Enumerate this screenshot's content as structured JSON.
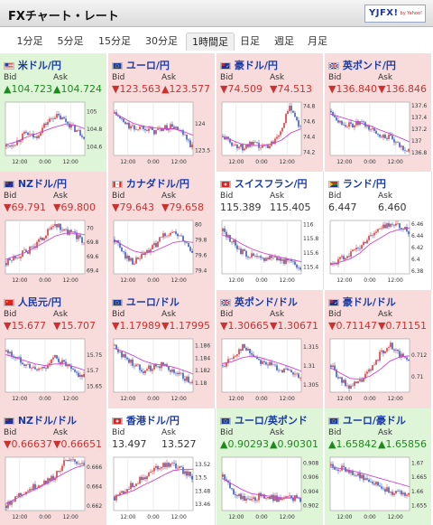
{
  "header": {
    "title": "FXチャート・レート",
    "logo": "YJFX!",
    "logo_sub": "by Yahoo!"
  },
  "tabs": [
    {
      "label": "1分足",
      "active": false
    },
    {
      "label": "5分足",
      "active": false
    },
    {
      "label": "15分足",
      "active": false
    },
    {
      "label": "30分足",
      "active": false
    },
    {
      "label": "1時間足",
      "active": true
    },
    {
      "label": "日足",
      "active": false
    },
    {
      "label": "週足",
      "active": false
    },
    {
      "label": "月足",
      "active": false
    }
  ],
  "labels": {
    "bid": "Bid",
    "ask": "Ask"
  },
  "colors": {
    "up_bg": "#dff5d8",
    "down_bg": "#f8dcdc",
    "up_text": "#1e8a1e",
    "down_text": "#cc3030",
    "candle_up": "#cc2222",
    "candle_down": "#2244aa",
    "ma_line": "#cc44cc"
  },
  "pairs": [
    {
      "name": "米ドル/円",
      "flag": "us",
      "dir": "up",
      "bid": "▲104.723",
      "ask": "▲104.724",
      "chart_data": {
        "type": "line",
        "xticks": [
          "12:00",
          "0:00",
          "12:00"
        ],
        "yticks": [
          "105",
          "104.8",
          "104.6"
        ],
        "ylim": [
          104.5,
          105.1
        ],
        "trend": [
          104.6,
          104.65,
          104.75,
          104.7,
          104.85,
          104.95,
          104.9,
          104.8,
          104.72
        ],
        "ma": [
          104.62,
          104.65,
          104.7,
          104.74,
          104.78,
          104.82,
          104.85,
          104.84,
          104.8
        ]
      }
    },
    {
      "name": "ユーロ/円",
      "flag": "eu",
      "dir": "down",
      "bid": "▼123.563",
      "ask": "▲123.577",
      "chart_data": {
        "type": "line",
        "xticks": [
          "12:00",
          "0:00",
          "12:00"
        ],
        "yticks": [
          "124",
          "123.5"
        ],
        "ylim": [
          123.4,
          124.4
        ],
        "trend": [
          124.2,
          124.0,
          123.9,
          123.95,
          123.85,
          123.9,
          123.95,
          123.8,
          123.55
        ],
        "ma": [
          124.2,
          124.1,
          124.0,
          123.95,
          123.92,
          123.9,
          123.9,
          123.85,
          123.78
        ]
      }
    },
    {
      "name": "豪ドル/円",
      "flag": "au",
      "dir": "down",
      "bid": "▼74.509",
      "ask": "▼74.513",
      "chart_data": {
        "type": "line",
        "xticks": [
          "12:00",
          "0:00",
          "12:00"
        ],
        "yticks": [
          "74.8",
          "74.6",
          "74.4",
          "74.2"
        ],
        "ylim": [
          74.15,
          74.85
        ],
        "trend": [
          74.4,
          74.3,
          74.25,
          74.3,
          74.25,
          74.3,
          74.5,
          74.8,
          74.5
        ],
        "ma": [
          74.4,
          74.35,
          74.3,
          74.28,
          74.28,
          74.3,
          74.35,
          74.45,
          74.5
        ]
      }
    },
    {
      "name": "英ポンド/円",
      "flag": "uk",
      "dir": "down",
      "bid": "▼136.840",
      "ask": "▼136.846",
      "chart_data": {
        "type": "line",
        "xticks": [
          "12:00",
          "0:00",
          "12:00"
        ],
        "yticks": [
          "137.6",
          "137.4",
          "137.2",
          "137",
          "136.8"
        ],
        "ylim": [
          136.75,
          137.65
        ],
        "trend": [
          137.5,
          137.3,
          137.25,
          137.3,
          137.2,
          137.1,
          137.05,
          136.9,
          136.84
        ],
        "ma": [
          137.45,
          137.4,
          137.35,
          137.3,
          137.25,
          137.18,
          137.12,
          137.05,
          136.98
        ]
      }
    },
    {
      "name": "NZドル/円",
      "flag": "nz",
      "dir": "down",
      "bid": "▼69.791",
      "ask": "▼69.800",
      "chart_data": {
        "type": "line",
        "xticks": [
          "12:00",
          "0:00",
          "12:00"
        ],
        "yticks": [
          "70",
          "69.8",
          "69.6",
          "69.4"
        ],
        "ylim": [
          69.35,
          70.1
        ],
        "trend": [
          69.5,
          69.6,
          69.65,
          69.75,
          69.9,
          70.05,
          69.95,
          69.9,
          69.79
        ],
        "ma": [
          69.55,
          69.6,
          69.65,
          69.72,
          69.8,
          69.88,
          69.92,
          69.92,
          69.9
        ]
      }
    },
    {
      "name": "カナダドル/円",
      "flag": "ca",
      "dir": "down",
      "bid": "▼79.643",
      "ask": "▼79.658",
      "chart_data": {
        "type": "line",
        "xticks": [
          "12:00",
          "0:00",
          "12:00"
        ],
        "yticks": [
          "80",
          "79.8",
          "79.6",
          "79.4"
        ],
        "ylim": [
          79.35,
          80.05
        ],
        "trend": [
          79.8,
          79.6,
          79.5,
          79.6,
          79.7,
          79.85,
          79.9,
          79.8,
          79.64
        ],
        "ma": [
          79.8,
          79.72,
          79.65,
          79.62,
          79.64,
          79.7,
          79.76,
          79.78,
          79.76
        ]
      }
    },
    {
      "name": "スイスフラン/円",
      "flag": "ch",
      "dir": "none",
      "bid": "115.389",
      "ask": "115.405",
      "chart_data": {
        "type": "line",
        "xticks": [
          "12:00",
          "0:00",
          "12:00"
        ],
        "yticks": [
          "116",
          "115.8",
          "115.6",
          "115.4"
        ],
        "ylim": [
          115.3,
          116.05
        ],
        "trend": [
          115.9,
          115.75,
          115.6,
          115.55,
          115.5,
          115.55,
          115.5,
          115.45,
          115.39
        ],
        "ma": [
          115.85,
          115.8,
          115.72,
          115.65,
          115.6,
          115.56,
          115.53,
          115.5,
          115.47
        ]
      }
    },
    {
      "name": "ランド/円",
      "flag": "za",
      "dir": "none",
      "bid": "6.447",
      "ask": "6.460",
      "chart_data": {
        "type": "line",
        "xticks": [
          "12:00",
          "0:00",
          "12:00"
        ],
        "yticks": [
          "6.46",
          "6.44",
          "6.42",
          "6.4",
          "6.38"
        ],
        "ylim": [
          6.375,
          6.465
        ],
        "trend": [
          6.39,
          6.4,
          6.41,
          6.42,
          6.44,
          6.45,
          6.46,
          6.455,
          6.447
        ],
        "ma": [
          6.39,
          6.395,
          6.4,
          6.41,
          6.425,
          6.435,
          6.445,
          6.45,
          6.452
        ]
      }
    },
    {
      "name": "人民元/円",
      "flag": "cn",
      "dir": "down",
      "bid": "▼15.677",
      "ask": "▼15.707",
      "chart_data": {
        "type": "line",
        "xticks": [
          "12:00",
          "0:00",
          "12:00"
        ],
        "yticks": [
          "15.75",
          "15.7",
          "15.65"
        ],
        "ylim": [
          15.63,
          15.8
        ],
        "trend": [
          15.76,
          15.74,
          15.72,
          15.7,
          15.71,
          15.74,
          15.72,
          15.69,
          15.68
        ],
        "ma": [
          15.75,
          15.74,
          15.73,
          15.72,
          15.715,
          15.72,
          15.72,
          15.71,
          15.7
        ]
      }
    },
    {
      "name": "ユーロ/ドル",
      "flag": "eu",
      "dir": "down",
      "bid": "▼1.17989",
      "ask": "▼1.17995",
      "chart_data": {
        "type": "line",
        "xticks": [
          "12:00",
          "0:00",
          "12:00"
        ],
        "yticks": [
          "1.186",
          "1.184",
          "1.182",
          "1.18"
        ],
        "ylim": [
          1.1785,
          1.187
        ],
        "trend": [
          1.186,
          1.184,
          1.183,
          1.182,
          1.1825,
          1.183,
          1.182,
          1.181,
          1.1799
        ],
        "ma": [
          1.1855,
          1.185,
          1.1843,
          1.1835,
          1.183,
          1.1828,
          1.1825,
          1.182,
          1.1814
        ]
      }
    },
    {
      "name": "英ポンド/ドル",
      "flag": "uk",
      "dir": "down",
      "bid": "▼1.30665",
      "ask": "▼1.30671",
      "chart_data": {
        "type": "line",
        "xticks": [
          "12:00",
          "0:00",
          "12:00"
        ],
        "yticks": [
          "1.315",
          "1.31",
          "1.305"
        ],
        "ylim": [
          1.303,
          1.317
        ],
        "trend": [
          1.31,
          1.312,
          1.315,
          1.313,
          1.311,
          1.31,
          1.309,
          1.308,
          1.3066
        ],
        "ma": [
          1.3105,
          1.311,
          1.312,
          1.3125,
          1.312,
          1.3112,
          1.3104,
          1.3095,
          1.3085
        ]
      }
    },
    {
      "name": "豪ドル/ドル",
      "flag": "au",
      "dir": "down",
      "bid": "▼0.71147",
      "ask": "▼0.71151",
      "chart_data": {
        "type": "line",
        "xticks": [
          "12:00",
          "0:00",
          "12:00"
        ],
        "yticks": [
          "0.712",
          "0.71"
        ],
        "ylim": [
          0.7085,
          0.7135
        ],
        "trend": [
          0.711,
          0.7095,
          0.709,
          0.7095,
          0.7105,
          0.712,
          0.713,
          0.712,
          0.7115
        ],
        "ma": [
          0.7108,
          0.7103,
          0.7098,
          0.7097,
          0.71,
          0.7106,
          0.7114,
          0.7118,
          0.7119
        ]
      }
    },
    {
      "name": "NZドル/ドル",
      "flag": "nz",
      "dir": "down",
      "bid": "▼0.66637",
      "ask": "▼0.66651",
      "chart_data": {
        "type": "line",
        "xticks": [
          "12:00",
          "0:00",
          "12:00"
        ],
        "yticks": [
          "0.666",
          "0.664",
          "0.662"
        ],
        "ylim": [
          0.6615,
          0.667
        ],
        "trend": [
          0.662,
          0.663,
          0.6635,
          0.664,
          0.6645,
          0.665,
          0.6665,
          0.6665,
          0.6664
        ],
        "ma": [
          0.6622,
          0.6627,
          0.6632,
          0.6637,
          0.6642,
          0.6648,
          0.6654,
          0.6659,
          0.6662
        ]
      }
    },
    {
      "name": "香港ドル/円",
      "flag": "hk",
      "dir": "none",
      "bid": "13.497",
      "ask": "13.527",
      "chart_data": {
        "type": "line",
        "xticks": [
          "12:00",
          "0:00",
          "12:00"
        ],
        "yticks": [
          "13.52",
          "13.5",
          "13.48",
          "13.46"
        ],
        "ylim": [
          13.45,
          13.53
        ],
        "trend": [
          13.47,
          13.48,
          13.49,
          13.5,
          13.51,
          13.52,
          13.52,
          13.51,
          13.5
        ],
        "ma": [
          13.47,
          13.475,
          13.48,
          13.488,
          13.495,
          13.503,
          13.51,
          13.512,
          13.512
        ]
      }
    },
    {
      "name": "ユーロ/英ポンド",
      "flag": "eu",
      "dir": "up",
      "bid": "▲0.90293",
      "ask": "▲0.90301",
      "chart_data": {
        "type": "line",
        "xticks": [
          "12:00",
          "0:00",
          "12:00"
        ],
        "yticks": [
          "0.908",
          "0.906",
          "0.904",
          "0.902"
        ],
        "ylim": [
          0.9012,
          0.9088
        ],
        "trend": [
          0.906,
          0.904,
          0.903,
          0.9025,
          0.9035,
          0.903,
          0.9028,
          0.903,
          0.9029
        ],
        "ma": [
          0.9058,
          0.905,
          0.9042,
          0.9036,
          0.9034,
          0.9032,
          0.903,
          0.903,
          0.903
        ]
      }
    },
    {
      "name": "ユーロ/豪ドル",
      "flag": "eu",
      "dir": "up",
      "bid": "▲1.65842",
      "ask": "▲1.65856",
      "chart_data": {
        "type": "line",
        "xticks": [
          "12:00",
          "0:00",
          "12:00"
        ],
        "yticks": [
          "1.67",
          "1.665",
          "1.66",
          "1.655"
        ],
        "ylim": [
          1.653,
          1.672
        ],
        "trend": [
          1.669,
          1.668,
          1.667,
          1.665,
          1.664,
          1.662,
          1.66,
          1.659,
          1.6584
        ],
        "ma": [
          1.6685,
          1.668,
          1.6673,
          1.6665,
          1.6655,
          1.6645,
          1.6635,
          1.6625,
          1.6615
        ]
      }
    }
  ]
}
